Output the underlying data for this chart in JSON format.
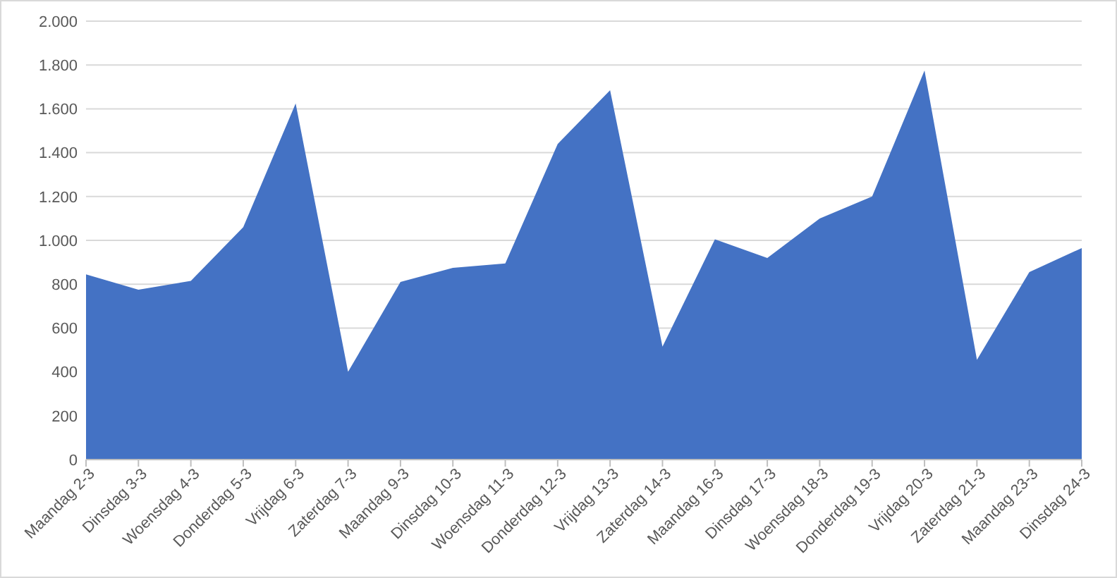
{
  "chart_data": {
    "type": "area",
    "categories": [
      "Maandag 2-3",
      "Dinsdag 3-3",
      "Woensdag 4-3",
      "Donderdag 5-3",
      "Vrijdag 6-3",
      "Zaterdag 7-3",
      "Maandag 9-3",
      "Dinsdag 10-3",
      "Woensdag 11-3",
      "Donderdag 12-3",
      "Vrijdag 13-3",
      "Zaterdag 14-3",
      "Maandag 16-3",
      "Dinsdag 17-3",
      "Woensdag 18-3",
      "Donderdag 19-3",
      "Vrijdag 20-3",
      "Zaterdag 21-3",
      "Maandag 23-3",
      "Dinsdag 24-3"
    ],
    "values": [
      845,
      775,
      815,
      1060,
      1625,
      400,
      810,
      875,
      895,
      1440,
      1685,
      515,
      1005,
      920,
      1100,
      1200,
      1775,
      455,
      855,
      965
    ],
    "color": "#4472c4",
    "ylim": [
      0,
      2000
    ],
    "yticks": [
      0,
      200,
      400,
      600,
      800,
      {
        "value": 1000,
        "label": "1.000"
      },
      {
        "value": 1200,
        "label": "1.200"
      },
      {
        "value": 1400,
        "label": "1.400"
      },
      {
        "value": 1600,
        "label": "1.600"
      },
      {
        "value": 1800,
        "label": "1.800"
      },
      {
        "value": 2000,
        "label": "2.000"
      }
    ],
    "grid": "y"
  }
}
